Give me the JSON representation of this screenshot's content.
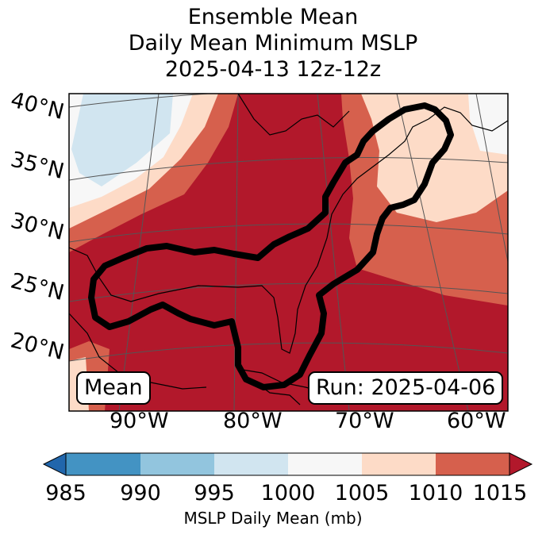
{
  "title": {
    "line1": "Ensemble Mean",
    "line2": "Daily Mean Minimum MSLP",
    "line3": "2025-04-13 12z-12z"
  },
  "map": {
    "lat_labels": [
      "40°N",
      "35°N",
      "30°N",
      "25°N",
      "20°N"
    ],
    "lon_labels": [
      "90°W",
      "80°W",
      "70°W",
      "60°W"
    ],
    "mean_box": "Mean",
    "run_box": "Run: 2025-04-06"
  },
  "colorbar": {
    "ticks": [
      "985",
      "990",
      "995",
      "1000",
      "1005",
      "1010",
      "1015"
    ],
    "label": "MSLP Daily Mean (mb)",
    "colors": [
      "#2166ac",
      "#4393c3",
      "#92c5de",
      "#d1e5f0",
      "#f7f7f7",
      "#fddbc7",
      "#d6604d",
      "#b2182b"
    ]
  }
}
